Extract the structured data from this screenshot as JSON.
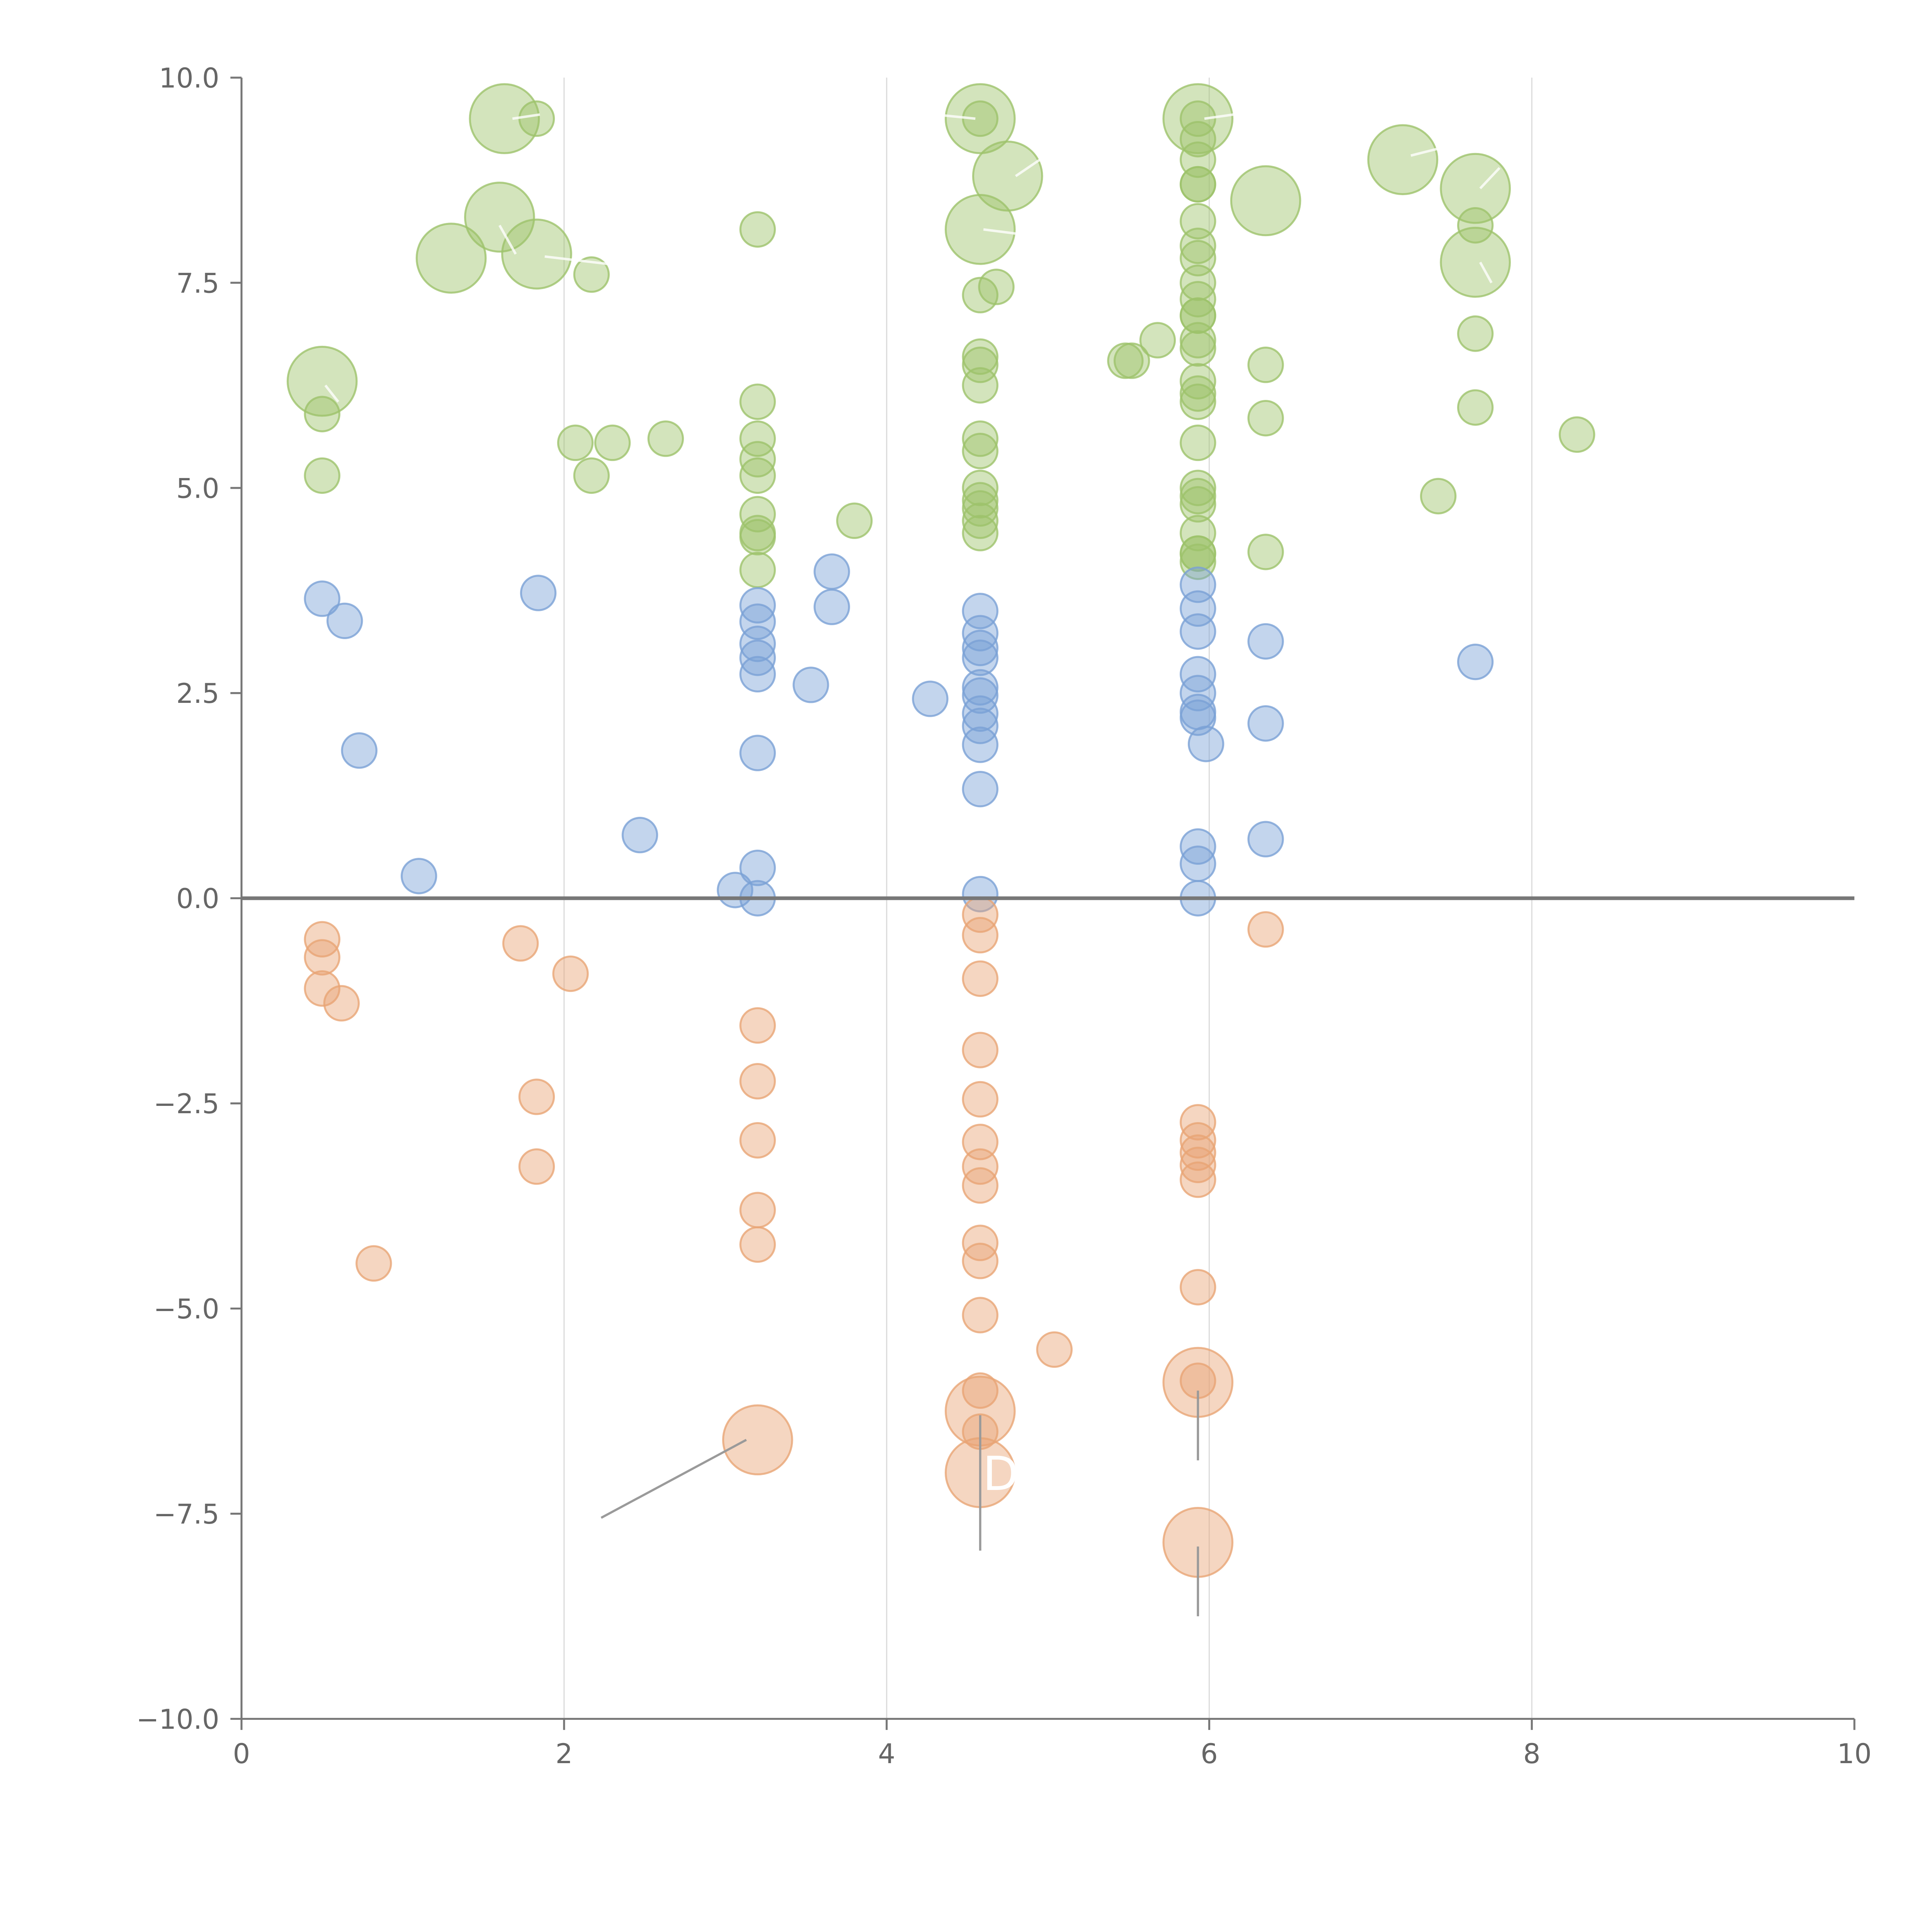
{
  "chart_data": {
    "type": "scatter",
    "title": "",
    "xlabel": "",
    "ylabel": "",
    "xlim": [
      0,
      10
    ],
    "ylim": [
      -10,
      10
    ],
    "x_ticks": [
      0,
      2,
      4,
      6,
      8,
      10
    ],
    "x_tick_labels": [
      "0",
      "2",
      "4",
      "6",
      "8",
      "10"
    ],
    "y_ticks": [
      10,
      7.5,
      5,
      2.5,
      0,
      -2.5,
      -5,
      -7.5,
      -10
    ],
    "y_tick_labels": [
      "10.0",
      "7.5",
      "5.0",
      "2.5",
      "0.0",
      "−2.5",
      "−5.0",
      "−7.5",
      "−10.0"
    ],
    "vertical_grid_at": [
      2,
      4,
      6,
      8
    ],
    "baseline_y": 0,
    "series": [
      {
        "name": "green",
        "color": "#9dc36b",
        "points": [
          [
            0.5,
            6.3,
            2
          ],
          [
            0.5,
            5.9,
            1
          ],
          [
            0.5,
            5.15,
            1
          ],
          [
            1.3,
            7.8,
            2
          ],
          [
            1.6,
            8.3,
            2
          ],
          [
            1.63,
            9.5,
            2
          ],
          [
            1.83,
            7.85,
            2
          ],
          [
            1.83,
            9.5,
            1
          ],
          [
            2.17,
            7.6,
            1
          ],
          [
            2.07,
            5.55,
            1
          ],
          [
            2.17,
            5.15,
            1
          ],
          [
            2.3,
            5.55,
            1
          ],
          [
            2.63,
            5.6,
            1
          ],
          [
            3.2,
            8.15,
            1
          ],
          [
            3.2,
            6.05,
            1
          ],
          [
            3.2,
            5.6,
            1
          ],
          [
            3.2,
            5.35,
            1
          ],
          [
            3.2,
            5.15,
            1
          ],
          [
            3.2,
            4.68,
            1
          ],
          [
            3.2,
            4.45,
            1
          ],
          [
            3.2,
            4.4,
            1
          ],
          [
            3.2,
            4.0,
            1
          ],
          [
            3.8,
            4.6,
            1
          ],
          [
            4.58,
            9.5,
            2
          ],
          [
            4.58,
            9.5,
            1
          ],
          [
            4.75,
            8.8,
            2
          ],
          [
            4.58,
            8.15,
            2
          ],
          [
            4.58,
            7.35,
            1
          ],
          [
            4.68,
            7.45,
            1
          ],
          [
            4.58,
            6.6,
            1
          ],
          [
            4.58,
            6.5,
            1
          ],
          [
            4.58,
            6.25,
            1
          ],
          [
            4.58,
            5.6,
            1
          ],
          [
            4.58,
            5.45,
            1
          ],
          [
            4.58,
            5.0,
            1
          ],
          [
            4.58,
            4.85,
            1
          ],
          [
            4.58,
            4.75,
            1
          ],
          [
            4.58,
            4.6,
            1
          ],
          [
            4.58,
            4.45,
            1
          ],
          [
            5.48,
            6.55,
            1
          ],
          [
            5.52,
            6.55,
            1
          ],
          [
            5.68,
            6.8,
            1
          ],
          [
            5.93,
            9.5,
            2
          ],
          [
            5.93,
            9.5,
            1
          ],
          [
            5.93,
            9.25,
            1
          ],
          [
            5.93,
            9.0,
            1
          ],
          [
            5.93,
            8.7,
            1
          ],
          [
            5.93,
            8.7,
            1
          ],
          [
            5.93,
            8.25,
            1
          ],
          [
            5.93,
            7.95,
            1
          ],
          [
            5.93,
            7.8,
            1
          ],
          [
            5.93,
            7.5,
            1
          ],
          [
            5.93,
            7.3,
            1
          ],
          [
            5.93,
            7.1,
            1
          ],
          [
            5.93,
            7.1,
            1
          ],
          [
            5.93,
            6.8,
            1
          ],
          [
            5.93,
            6.7,
            1
          ],
          [
            5.93,
            6.3,
            1
          ],
          [
            5.93,
            6.15,
            1
          ],
          [
            5.93,
            6.05,
            1
          ],
          [
            5.93,
            5.55,
            1
          ],
          [
            5.93,
            5.0,
            1
          ],
          [
            5.93,
            4.9,
            1
          ],
          [
            5.93,
            4.8,
            1
          ],
          [
            5.93,
            4.45,
            1
          ],
          [
            5.93,
            4.2,
            1
          ],
          [
            5.93,
            4.2,
            1
          ],
          [
            5.93,
            4.1,
            1
          ],
          [
            6.35,
            8.5,
            2
          ],
          [
            6.35,
            6.5,
            1
          ],
          [
            6.35,
            5.85,
            1
          ],
          [
            6.35,
            4.22,
            1
          ],
          [
            7.2,
            9.0,
            2
          ],
          [
            7.65,
            8.65,
            2
          ],
          [
            7.65,
            8.2,
            1
          ],
          [
            7.65,
            7.75,
            2
          ],
          [
            7.65,
            6.88,
            1
          ],
          [
            7.65,
            5.98,
            1
          ],
          [
            7.42,
            4.9,
            1
          ],
          [
            8.28,
            5.65,
            1
          ]
        ]
      },
      {
        "name": "blue",
        "color": "#7ba1d6",
        "points": [
          [
            0.5,
            3.65,
            1
          ],
          [
            0.64,
            3.38,
            1
          ],
          [
            0.73,
            1.8,
            1
          ],
          [
            1.84,
            3.72,
            1
          ],
          [
            1.1,
            0.27,
            1
          ],
          [
            2.47,
            0.77,
            1
          ],
          [
            3.06,
            0.1,
            1
          ],
          [
            3.2,
            0.37,
            1
          ],
          [
            3.2,
            0.0,
            1
          ],
          [
            3.2,
            3.57,
            1
          ],
          [
            3.2,
            3.37,
            1
          ],
          [
            3.2,
            3.1,
            1
          ],
          [
            3.2,
            2.93,
            1
          ],
          [
            3.2,
            2.73,
            1
          ],
          [
            3.2,
            1.77,
            1
          ],
          [
            3.53,
            2.6,
            1
          ],
          [
            3.66,
            3.98,
            1
          ],
          [
            3.66,
            3.55,
            1
          ],
          [
            4.27,
            2.43,
            1
          ],
          [
            4.58,
            3.5,
            1
          ],
          [
            4.58,
            3.23,
            1
          ],
          [
            4.58,
            3.05,
            1
          ],
          [
            4.58,
            2.93,
            1
          ],
          [
            4.58,
            2.57,
            1
          ],
          [
            4.58,
            2.47,
            1
          ],
          [
            4.58,
            2.25,
            1
          ],
          [
            4.58,
            2.1,
            1
          ],
          [
            4.58,
            1.87,
            1
          ],
          [
            4.58,
            1.33,
            1
          ],
          [
            4.58,
            0.05,
            1
          ],
          [
            5.93,
            3.82,
            1
          ],
          [
            5.93,
            3.53,
            1
          ],
          [
            5.93,
            3.25,
            1
          ],
          [
            5.93,
            2.73,
            1
          ],
          [
            5.93,
            2.5,
            1
          ],
          [
            5.93,
            2.27,
            1
          ],
          [
            5.93,
            2.2,
            1
          ],
          [
            5.98,
            1.88,
            1
          ],
          [
            5.93,
            0.63,
            1
          ],
          [
            5.93,
            0.42,
            1
          ],
          [
            5.93,
            0.0,
            1
          ],
          [
            6.35,
            3.13,
            1
          ],
          [
            6.35,
            2.13,
            1
          ],
          [
            6.35,
            0.72,
            1
          ],
          [
            7.65,
            2.88,
            1
          ]
        ]
      },
      {
        "name": "orange",
        "color": "#e9a575",
        "points": [
          [
            0.5,
            -0.5,
            1
          ],
          [
            0.5,
            -0.72,
            1
          ],
          [
            0.5,
            -1.1,
            1
          ],
          [
            0.62,
            -1.28,
            1
          ],
          [
            0.82,
            -4.45,
            1
          ],
          [
            1.73,
            -0.55,
            1
          ],
          [
            2.04,
            -0.92,
            1
          ],
          [
            1.83,
            -2.42,
            1
          ],
          [
            1.83,
            -3.27,
            1
          ],
          [
            3.2,
            -1.55,
            1
          ],
          [
            3.2,
            -2.23,
            1
          ],
          [
            3.2,
            -2.95,
            1
          ],
          [
            3.2,
            -3.8,
            1
          ],
          [
            3.2,
            -4.22,
            1
          ],
          [
            3.2,
            -6.6,
            2
          ],
          [
            4.58,
            -0.2,
            1
          ],
          [
            4.58,
            -0.45,
            1
          ],
          [
            4.58,
            -0.98,
            1
          ],
          [
            4.58,
            -1.85,
            1
          ],
          [
            4.58,
            -2.45,
            1
          ],
          [
            4.58,
            -2.97,
            1
          ],
          [
            4.58,
            -3.27,
            1
          ],
          [
            4.58,
            -3.5,
            1
          ],
          [
            4.58,
            -4.2,
            1
          ],
          [
            4.58,
            -4.42,
            1
          ],
          [
            4.58,
            -5.08,
            1
          ],
          [
            4.58,
            -6.0,
            1
          ],
          [
            4.58,
            -6.25,
            2
          ],
          [
            4.58,
            -6.5,
            1
          ],
          [
            4.58,
            -7.0,
            2
          ],
          [
            5.04,
            -5.5,
            1
          ],
          [
            5.93,
            -2.73,
            1
          ],
          [
            5.93,
            -2.95,
            1
          ],
          [
            5.93,
            -3.1,
            1
          ],
          [
            5.93,
            -3.25,
            1
          ],
          [
            5.93,
            -3.43,
            1
          ],
          [
            5.93,
            -4.74,
            1
          ],
          [
            5.93,
            -5.88,
            1
          ],
          [
            5.93,
            -5.9,
            2
          ],
          [
            5.93,
            -7.85,
            2
          ],
          [
            6.35,
            -0.38,
            1
          ]
        ]
      }
    ],
    "annotations": [
      {
        "text": "D",
        "x": 4.58,
        "y": -7.0,
        "color": "#ffffff"
      }
    ]
  }
}
